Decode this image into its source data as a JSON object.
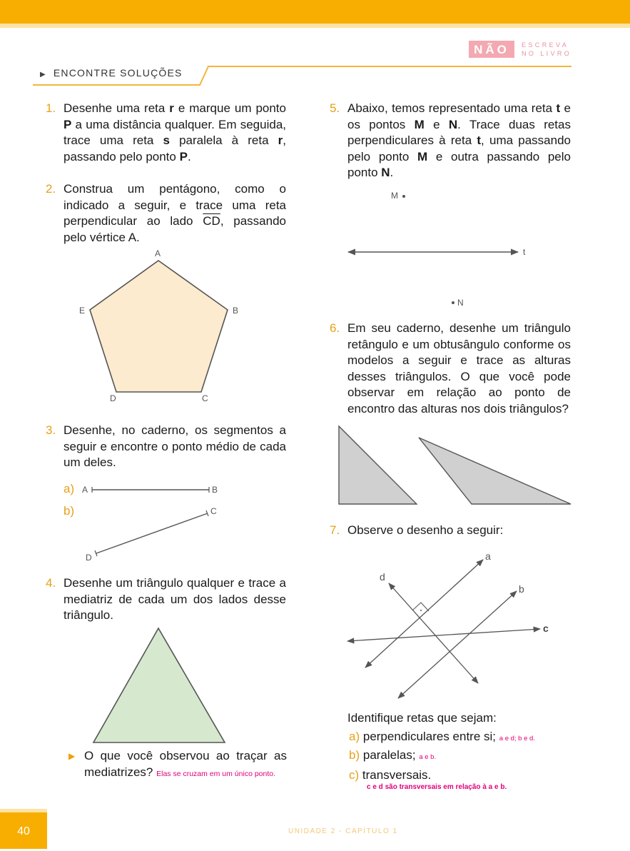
{
  "header": {
    "nao_box": "NÃO",
    "nao_line1": "ESCREVA",
    "nao_line2": "NO LIVRO",
    "section_title": "ENCONTRE SOLUÇÕES"
  },
  "q1": {
    "num": "1.",
    "text_html": "Desenhe uma reta <b>r</b> e marque um ponto <b>P</b> a uma distância qualquer. Em seguida, trace uma reta <b>s</b> paralela à reta <b>r</b>, passando pelo ponto <b>P</b>."
  },
  "q2": {
    "num": "2.",
    "text_html": "Construa um pentágono, como o indicado a seguir, e trace uma reta perpendicular ao lado <span style=\"text-decoration:overline\">CD</span>, passando pelo vértice A.",
    "vertices": [
      "A",
      "B",
      "C",
      "D",
      "E"
    ],
    "fill": "#fdebcf"
  },
  "q3": {
    "num": "3.",
    "text": "Desenhe, no caderno, os segmentos a seguir e encontre o ponto médio de cada um deles.",
    "a_label": "a)",
    "b_label": "b)",
    "seg_a": [
      "A",
      "B"
    ],
    "seg_b": [
      "C",
      "D"
    ]
  },
  "q4": {
    "num": "4.",
    "text": "Desenhe um triângulo qualquer e trace a mediatriz de cada um dos lados desse triângulo.",
    "fill": "#d6e9cf",
    "sub_question": "O que você observou ao traçar as mediatrizes?",
    "answer": "Elas se cruzam em um único ponto."
  },
  "q5": {
    "num": "5.",
    "text_html": "Abaixo, temos representado uma reta <b>t</b> e os pontos <b>M</b> e <b>N</b>. Trace duas retas perpendiculares à reta <b>t</b>, uma passando pelo ponto <b>M</b> e outra passando pelo ponto <b>N</b>.",
    "point_m": "M",
    "point_n": "N",
    "line_t": "t"
  },
  "q6": {
    "num": "6.",
    "text": "Em seu caderno, desenhe um triângulo retângulo e um obtusângulo conforme os modelos a seguir e trace as alturas desses triângulos. O que você pode observar em relação ao ponto de encontro das alturas nos dois triângulos?",
    "fill": "#d0d0d0"
  },
  "q7": {
    "num": "7.",
    "text": "Observe o desenho a seguir:",
    "lines": [
      "a",
      "b",
      "c",
      "d"
    ],
    "identify": "Identifique retas que sejam:",
    "items": [
      {
        "label": "a)",
        "text": "perpendiculares entre si;",
        "answer": "a e d; b e d."
      },
      {
        "label": "b)",
        "text": "paralelas;",
        "answer": "a e b."
      },
      {
        "label": "c)",
        "text": "transversais.",
        "answer": "c e d são transversais em relação à a e b."
      }
    ]
  },
  "footer": {
    "page": "40",
    "unit": "UNIDADE 2 - CAPÍTULO 1"
  }
}
